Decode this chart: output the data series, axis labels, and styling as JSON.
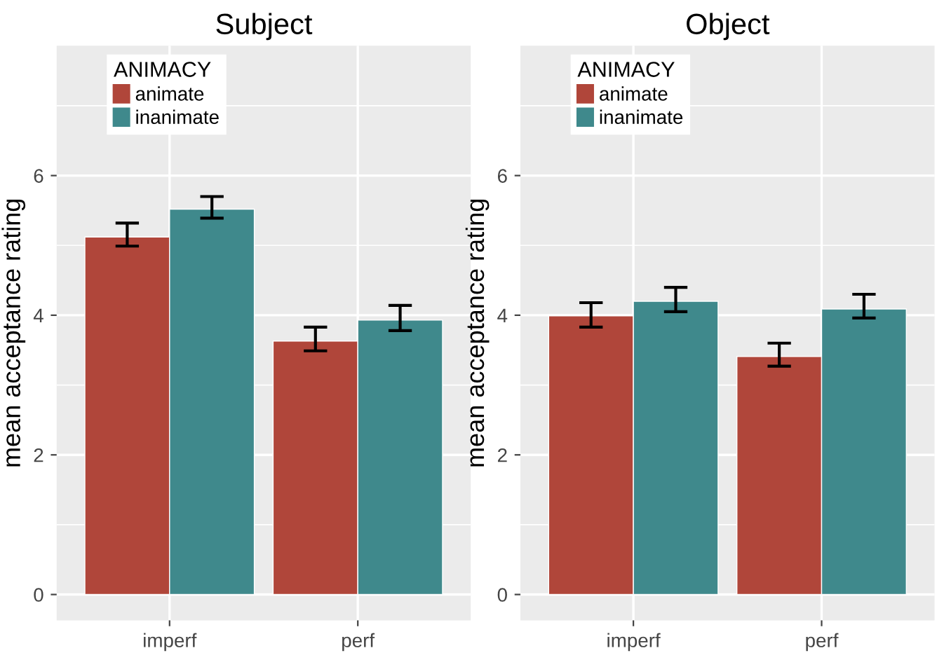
{
  "chart_data": [
    {
      "type": "bar",
      "title": "Subject",
      "ylabel": "mean acceptance rating",
      "legend_title": "ANIMACY",
      "categories": [
        "imperf",
        "perf"
      ],
      "ylim": [
        -0.37,
        7.86
      ],
      "yticks": [
        0,
        2,
        4,
        6
      ],
      "grid": true,
      "legend": "top left",
      "series": [
        {
          "name": "animate",
          "color": "#b0463a",
          "values": [
            5.12,
            3.63
          ],
          "errors": [
            [
              4.99,
              5.32
            ],
            [
              3.49,
              3.83
            ]
          ]
        },
        {
          "name": "inanimate",
          "color": "#3f898c",
          "values": [
            5.52,
            3.93
          ],
          "errors": [
            [
              5.39,
              5.7
            ],
            [
              3.78,
              4.14
            ]
          ]
        }
      ]
    },
    {
      "type": "bar",
      "title": "Object",
      "ylabel": "mean acceptance rating",
      "legend_title": "ANIMACY",
      "categories": [
        "imperf",
        "perf"
      ],
      "ylim": [
        -0.37,
        7.86
      ],
      "yticks": [
        0,
        2,
        4,
        6
      ],
      "grid": true,
      "legend": "top left",
      "series": [
        {
          "name": "animate",
          "color": "#b0463a",
          "values": [
            3.99,
            3.41
          ],
          "errors": [
            [
              3.83,
              4.18
            ],
            [
              3.27,
              3.6
            ]
          ]
        },
        {
          "name": "inanimate",
          "color": "#3f898c",
          "values": [
            4.2,
            4.09
          ],
          "errors": [
            [
              4.05,
              4.4
            ],
            [
              3.96,
              4.3
            ]
          ]
        }
      ]
    }
  ]
}
